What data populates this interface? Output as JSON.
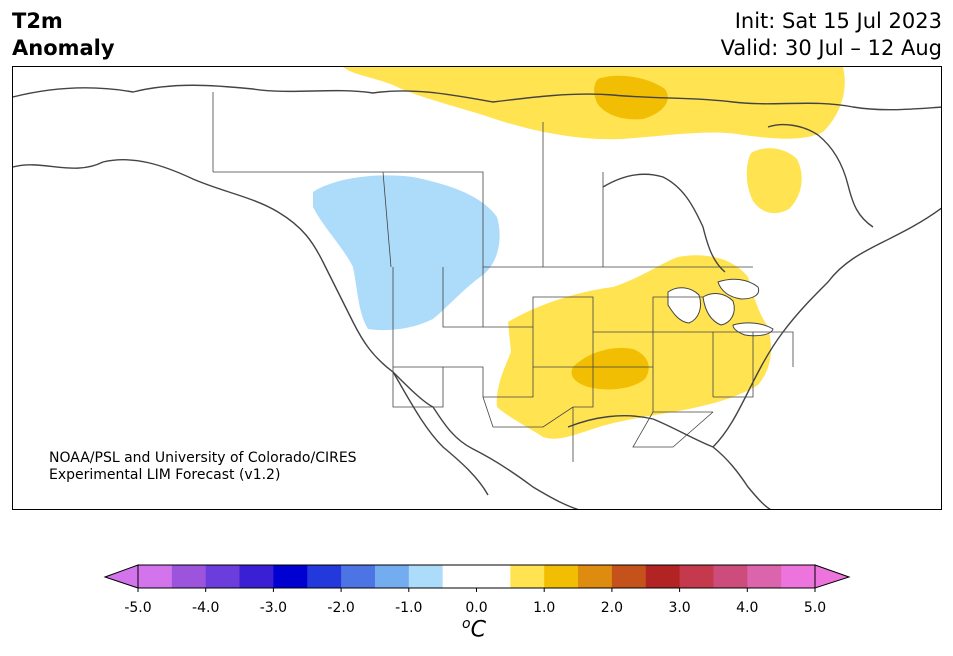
{
  "header": {
    "title_line1": "T2m",
    "title_line2": "Anomaly",
    "init": "Init: Sat 15 Jul 2023",
    "valid": "Valid: 30 Jul – 12 Aug"
  },
  "map": {
    "credit_line1": "NOAA/PSL and University of Colorado/CIRES",
    "credit_line2": "Experimental LIM Forecast (v1.2)",
    "anomaly_regions": [
      {
        "name": "northwest-cool",
        "value": "-1.0 to -0.5",
        "color": "#acdcfa"
      },
      {
        "name": "central-us-warm",
        "value": "0.5 to 1.0",
        "color": "#ffe350"
      },
      {
        "name": "central-us-warm-core",
        "value": "1.0 to 1.5",
        "color": "#f2be04"
      },
      {
        "name": "canadian-arctic-warm",
        "value": "0.5 to 1.0",
        "color": "#ffe350"
      },
      {
        "name": "hudson-warm-core",
        "value": "1.0 to 1.5",
        "color": "#f2be04"
      },
      {
        "name": "labrador-warm",
        "value": "0.5 to 1.0",
        "color": "#ffe350"
      }
    ]
  },
  "colorbar": {
    "unit": "°C",
    "unit_base": "C",
    "unit_sup": "o",
    "ticks": [
      "-5.0",
      "-4.0",
      "-3.0",
      "-2.0",
      "-1.0",
      "0.0",
      "1.0",
      "2.0",
      "3.0",
      "4.0",
      "5.0"
    ],
    "colors": [
      "#d474ec",
      "#9c54dc",
      "#6a3ddc",
      "#3a1fd4",
      "#0000d0",
      "#2439dc",
      "#4c74e4",
      "#74acf0",
      "#acdcfa",
      "#ffffff",
      "#ffffff",
      "#ffe350",
      "#f2be04",
      "#de8c10",
      "#c4521a",
      "#b22424",
      "#c43a4c",
      "#cc4c7c",
      "#dc64ac",
      "#ec74dc"
    ],
    "under_color": "#d474ec",
    "over_color": "#ec74dc"
  }
}
